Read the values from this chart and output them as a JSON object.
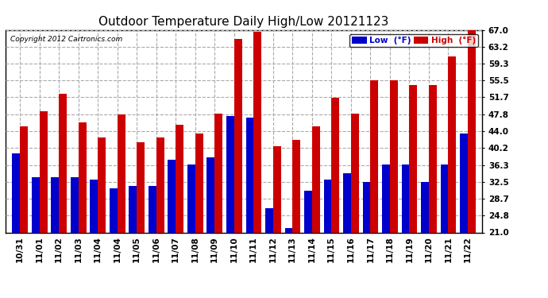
{
  "title": "Outdoor Temperature Daily High/Low 20121123",
  "copyright": "Copyright 2012 Cartronics.com",
  "legend_low": "Low  (°F)",
  "legend_high": "High  (°F)",
  "labels": [
    "10/31",
    "11/01",
    "11/02",
    "11/03",
    "11/04",
    "11/04",
    "11/05",
    "11/06",
    "11/07",
    "11/08",
    "11/09",
    "11/10",
    "11/11",
    "11/12",
    "11/13",
    "11/14",
    "11/15",
    "11/16",
    "11/17",
    "11/18",
    "11/19",
    "11/20",
    "11/21",
    "11/22"
  ],
  "low": [
    39.0,
    33.5,
    33.5,
    33.5,
    33.0,
    31.0,
    31.5,
    31.5,
    37.5,
    36.5,
    38.0,
    47.5,
    47.0,
    26.5,
    22.0,
    30.5,
    33.0,
    34.5,
    32.5,
    36.5,
    36.5,
    32.5,
    36.5,
    43.5
  ],
  "high": [
    45.0,
    48.5,
    52.5,
    46.0,
    42.5,
    47.8,
    41.5,
    42.5,
    45.5,
    43.5,
    48.0,
    65.0,
    66.5,
    40.5,
    42.0,
    45.0,
    51.5,
    48.0,
    55.5,
    55.5,
    54.5,
    54.5,
    61.0,
    67.0
  ],
  "ymin": 21.0,
  "ymax": 67.0,
  "yticks": [
    21.0,
    24.8,
    28.7,
    32.5,
    36.3,
    40.2,
    44.0,
    47.8,
    51.7,
    55.5,
    59.3,
    63.2,
    67.0
  ],
  "low_color": "#0000cc",
  "high_color": "#cc0000",
  "bg_color": "#ffffff",
  "grid_color": "#aaaaaa",
  "bar_width": 0.4,
  "title_fontsize": 11,
  "tick_fontsize": 7.5
}
